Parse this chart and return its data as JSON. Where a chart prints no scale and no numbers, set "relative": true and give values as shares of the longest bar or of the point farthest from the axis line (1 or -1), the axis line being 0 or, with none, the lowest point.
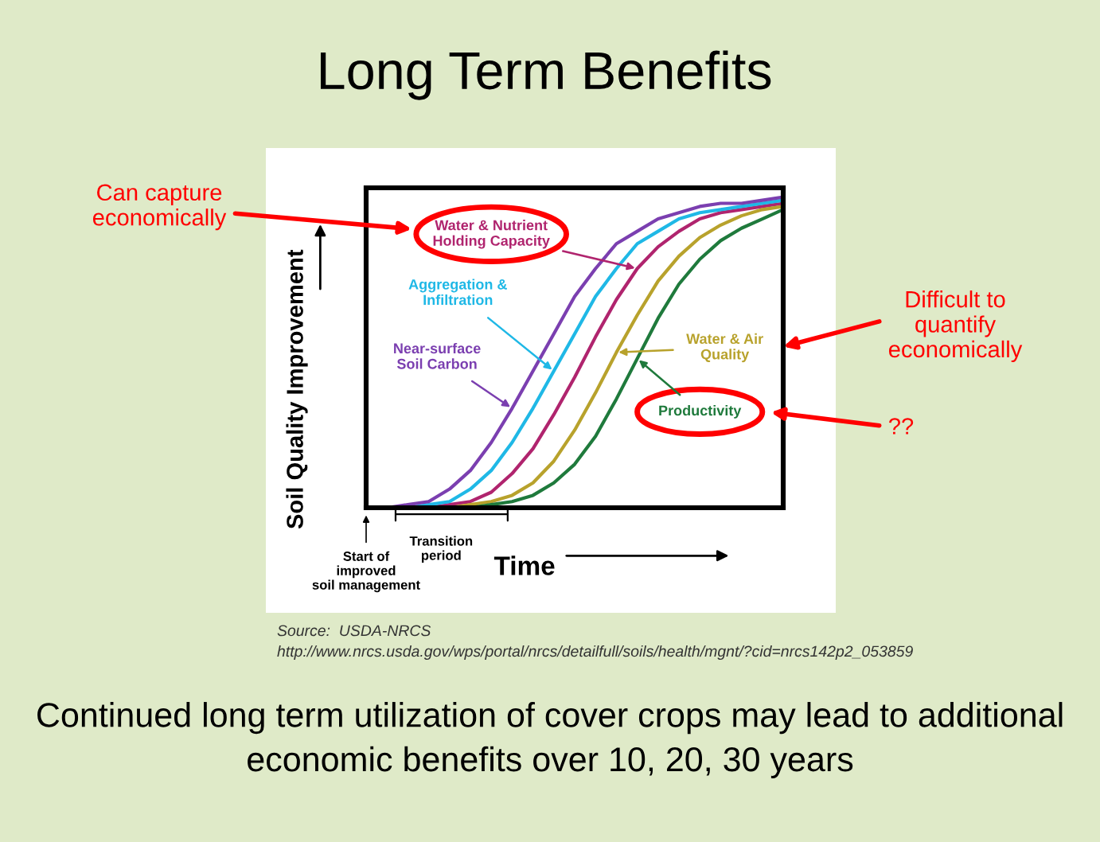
{
  "chart_data": {
    "type": "line",
    "relative": true,
    "title": "Long Term Benefits",
    "xlabel": "Time",
    "ylabel": "Soil Quality Improvement",
    "categories": [
      null,
      null,
      null,
      null,
      null,
      null,
      null,
      null,
      null,
      null,
      null,
      null,
      null,
      null,
      null,
      null,
      null,
      null,
      null,
      null,
      null
    ],
    "series": [
      {
        "name": "Water & Nutrient Holding Capacity",
        "color": "#b0246e",
        "values": [
          null,
          null,
          0,
          0,
          0.01,
          0.02,
          0.05,
          0.11,
          0.19,
          0.3,
          0.42,
          0.55,
          0.67,
          0.77,
          0.84,
          0.89,
          0.93,
          0.95,
          0.96,
          0.97,
          0.98
        ]
      },
      {
        "name": "Aggregation & Infiltration",
        "color": "#1fb8e6",
        "values": [
          0,
          0,
          0,
          0.01,
          0.02,
          0.06,
          0.12,
          0.21,
          0.32,
          0.44,
          0.56,
          0.68,
          0.77,
          0.85,
          0.89,
          0.93,
          0.95,
          0.96,
          0.97,
          0.98,
          0.99
        ]
      },
      {
        "name": "Near-surface Soil Carbon",
        "color": "#7b3fb0",
        "values": [
          0,
          0,
          0.01,
          0.02,
          0.06,
          0.12,
          0.21,
          0.32,
          0.44,
          0.56,
          0.68,
          0.77,
          0.85,
          0.89,
          0.93,
          0.95,
          0.97,
          0.98,
          0.98,
          0.99,
          1
        ]
      },
      {
        "name": "Water & Air Quality",
        "color": "#b8a22c",
        "values": [
          null,
          null,
          null,
          0,
          0,
          0.01,
          0.02,
          0.04,
          0.08,
          0.15,
          0.25,
          0.37,
          0.5,
          0.62,
          0.73,
          0.81,
          0.87,
          0.91,
          0.94,
          0.96,
          0.97
        ]
      },
      {
        "name": "Productivity",
        "color": "#1f7a3c",
        "values": [
          null,
          null,
          null,
          null,
          0,
          0,
          0.01,
          0.02,
          0.04,
          0.08,
          0.14,
          0.23,
          0.35,
          0.48,
          0.61,
          0.72,
          0.8,
          0.86,
          0.9,
          0.93,
          0.96
        ]
      }
    ],
    "annotations": [
      "Can capture economically",
      "Difficult to quantify economically",
      "??",
      "Start of improved soil management",
      "Transition period",
      "Source:  USDA-NRCS",
      "http://www.nrcs.usda.gov/wps/portal/nrcs/detailfull/soils/health/mgnt/?cid=nrcs142p2_053859",
      "Continued long term utilization of cover crops may lead to additional economic benefits over 10, 20, 30 years"
    ]
  }
}
